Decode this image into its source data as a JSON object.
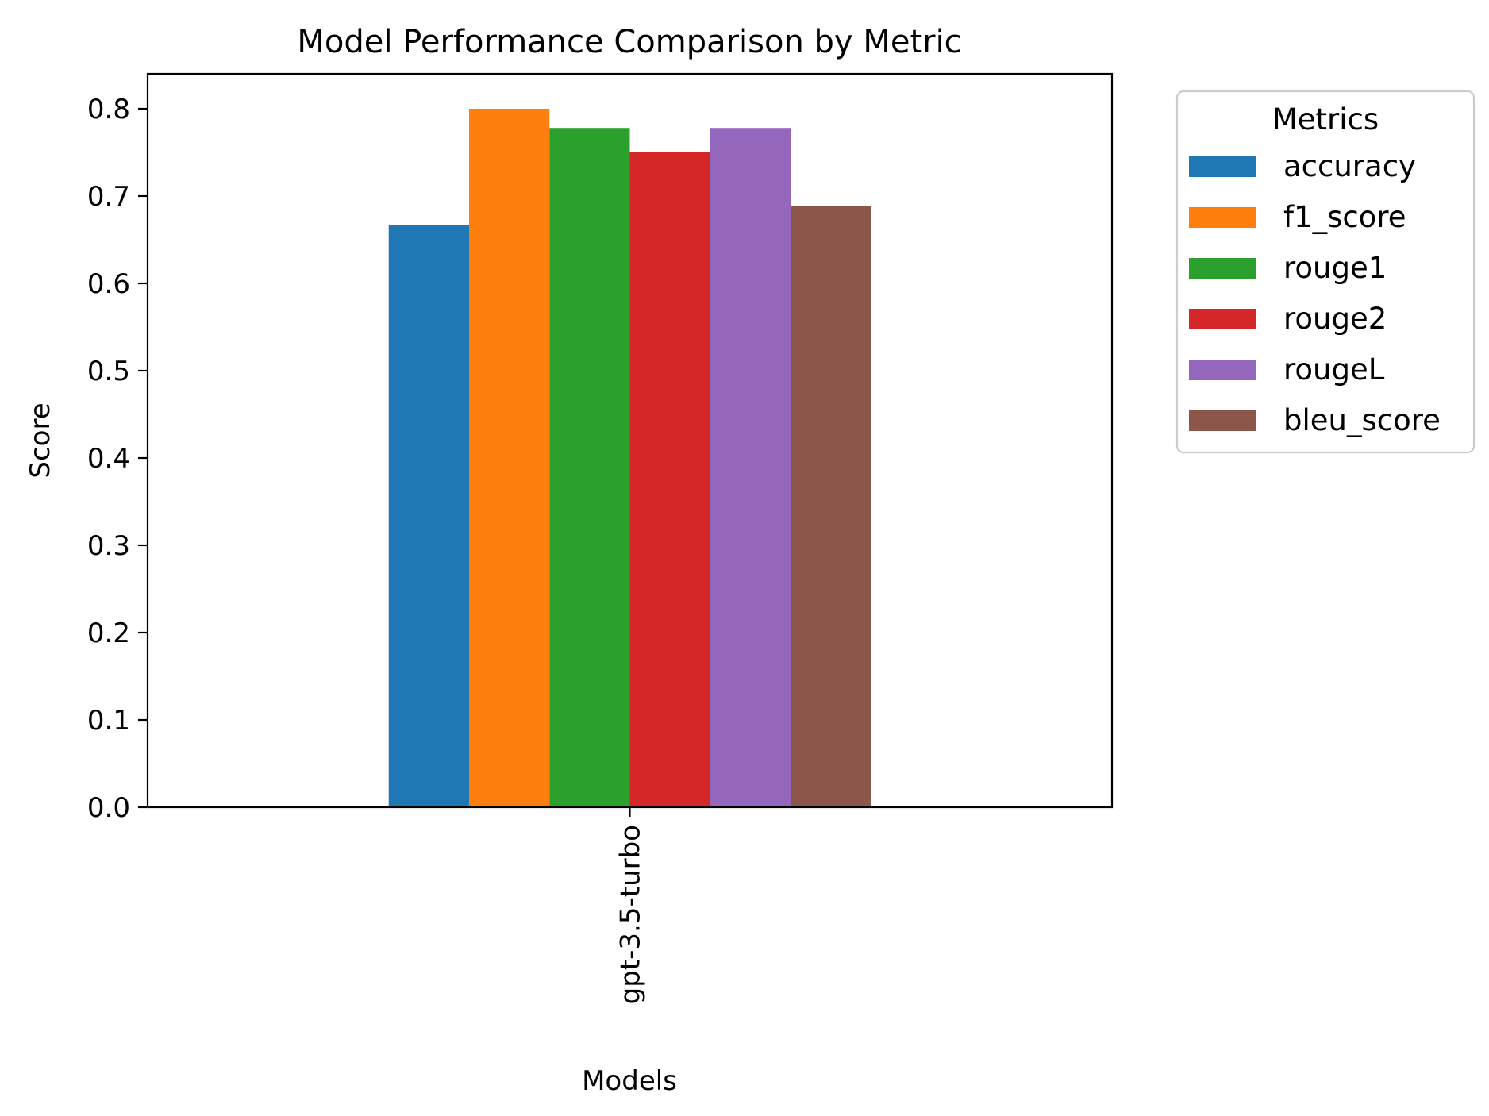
{
  "chart_data": {
    "type": "bar",
    "title": "Model Performance Comparison by Metric",
    "xlabel": "Models",
    "ylabel": "Score",
    "categories": [
      "gpt-3.5-turbo"
    ],
    "ylim": [
      0,
      0.84
    ],
    "yticks": [
      0.0,
      0.1,
      0.2,
      0.3,
      0.4,
      0.5,
      0.6,
      0.7,
      0.8
    ],
    "ytick_labels": [
      "0.0",
      "0.1",
      "0.2",
      "0.3",
      "0.4",
      "0.5",
      "0.6",
      "0.7",
      "0.8"
    ],
    "grid": false,
    "legend": {
      "title": "Metrics",
      "placement": "outside-right-top"
    },
    "series": [
      {
        "name": "accuracy",
        "values": [
          0.667
        ],
        "color": "#1f77b4"
      },
      {
        "name": "f1_score",
        "values": [
          0.8
        ],
        "color": "#ff7f0e"
      },
      {
        "name": "rouge1",
        "values": [
          0.778
        ],
        "color": "#2ca02c"
      },
      {
        "name": "rouge2",
        "values": [
          0.75
        ],
        "color": "#d62728"
      },
      {
        "name": "rougeL",
        "values": [
          0.778
        ],
        "color": "#9467bd"
      },
      {
        "name": "bleu_score",
        "values": [
          0.689
        ],
        "color": "#8c564b"
      }
    ]
  }
}
